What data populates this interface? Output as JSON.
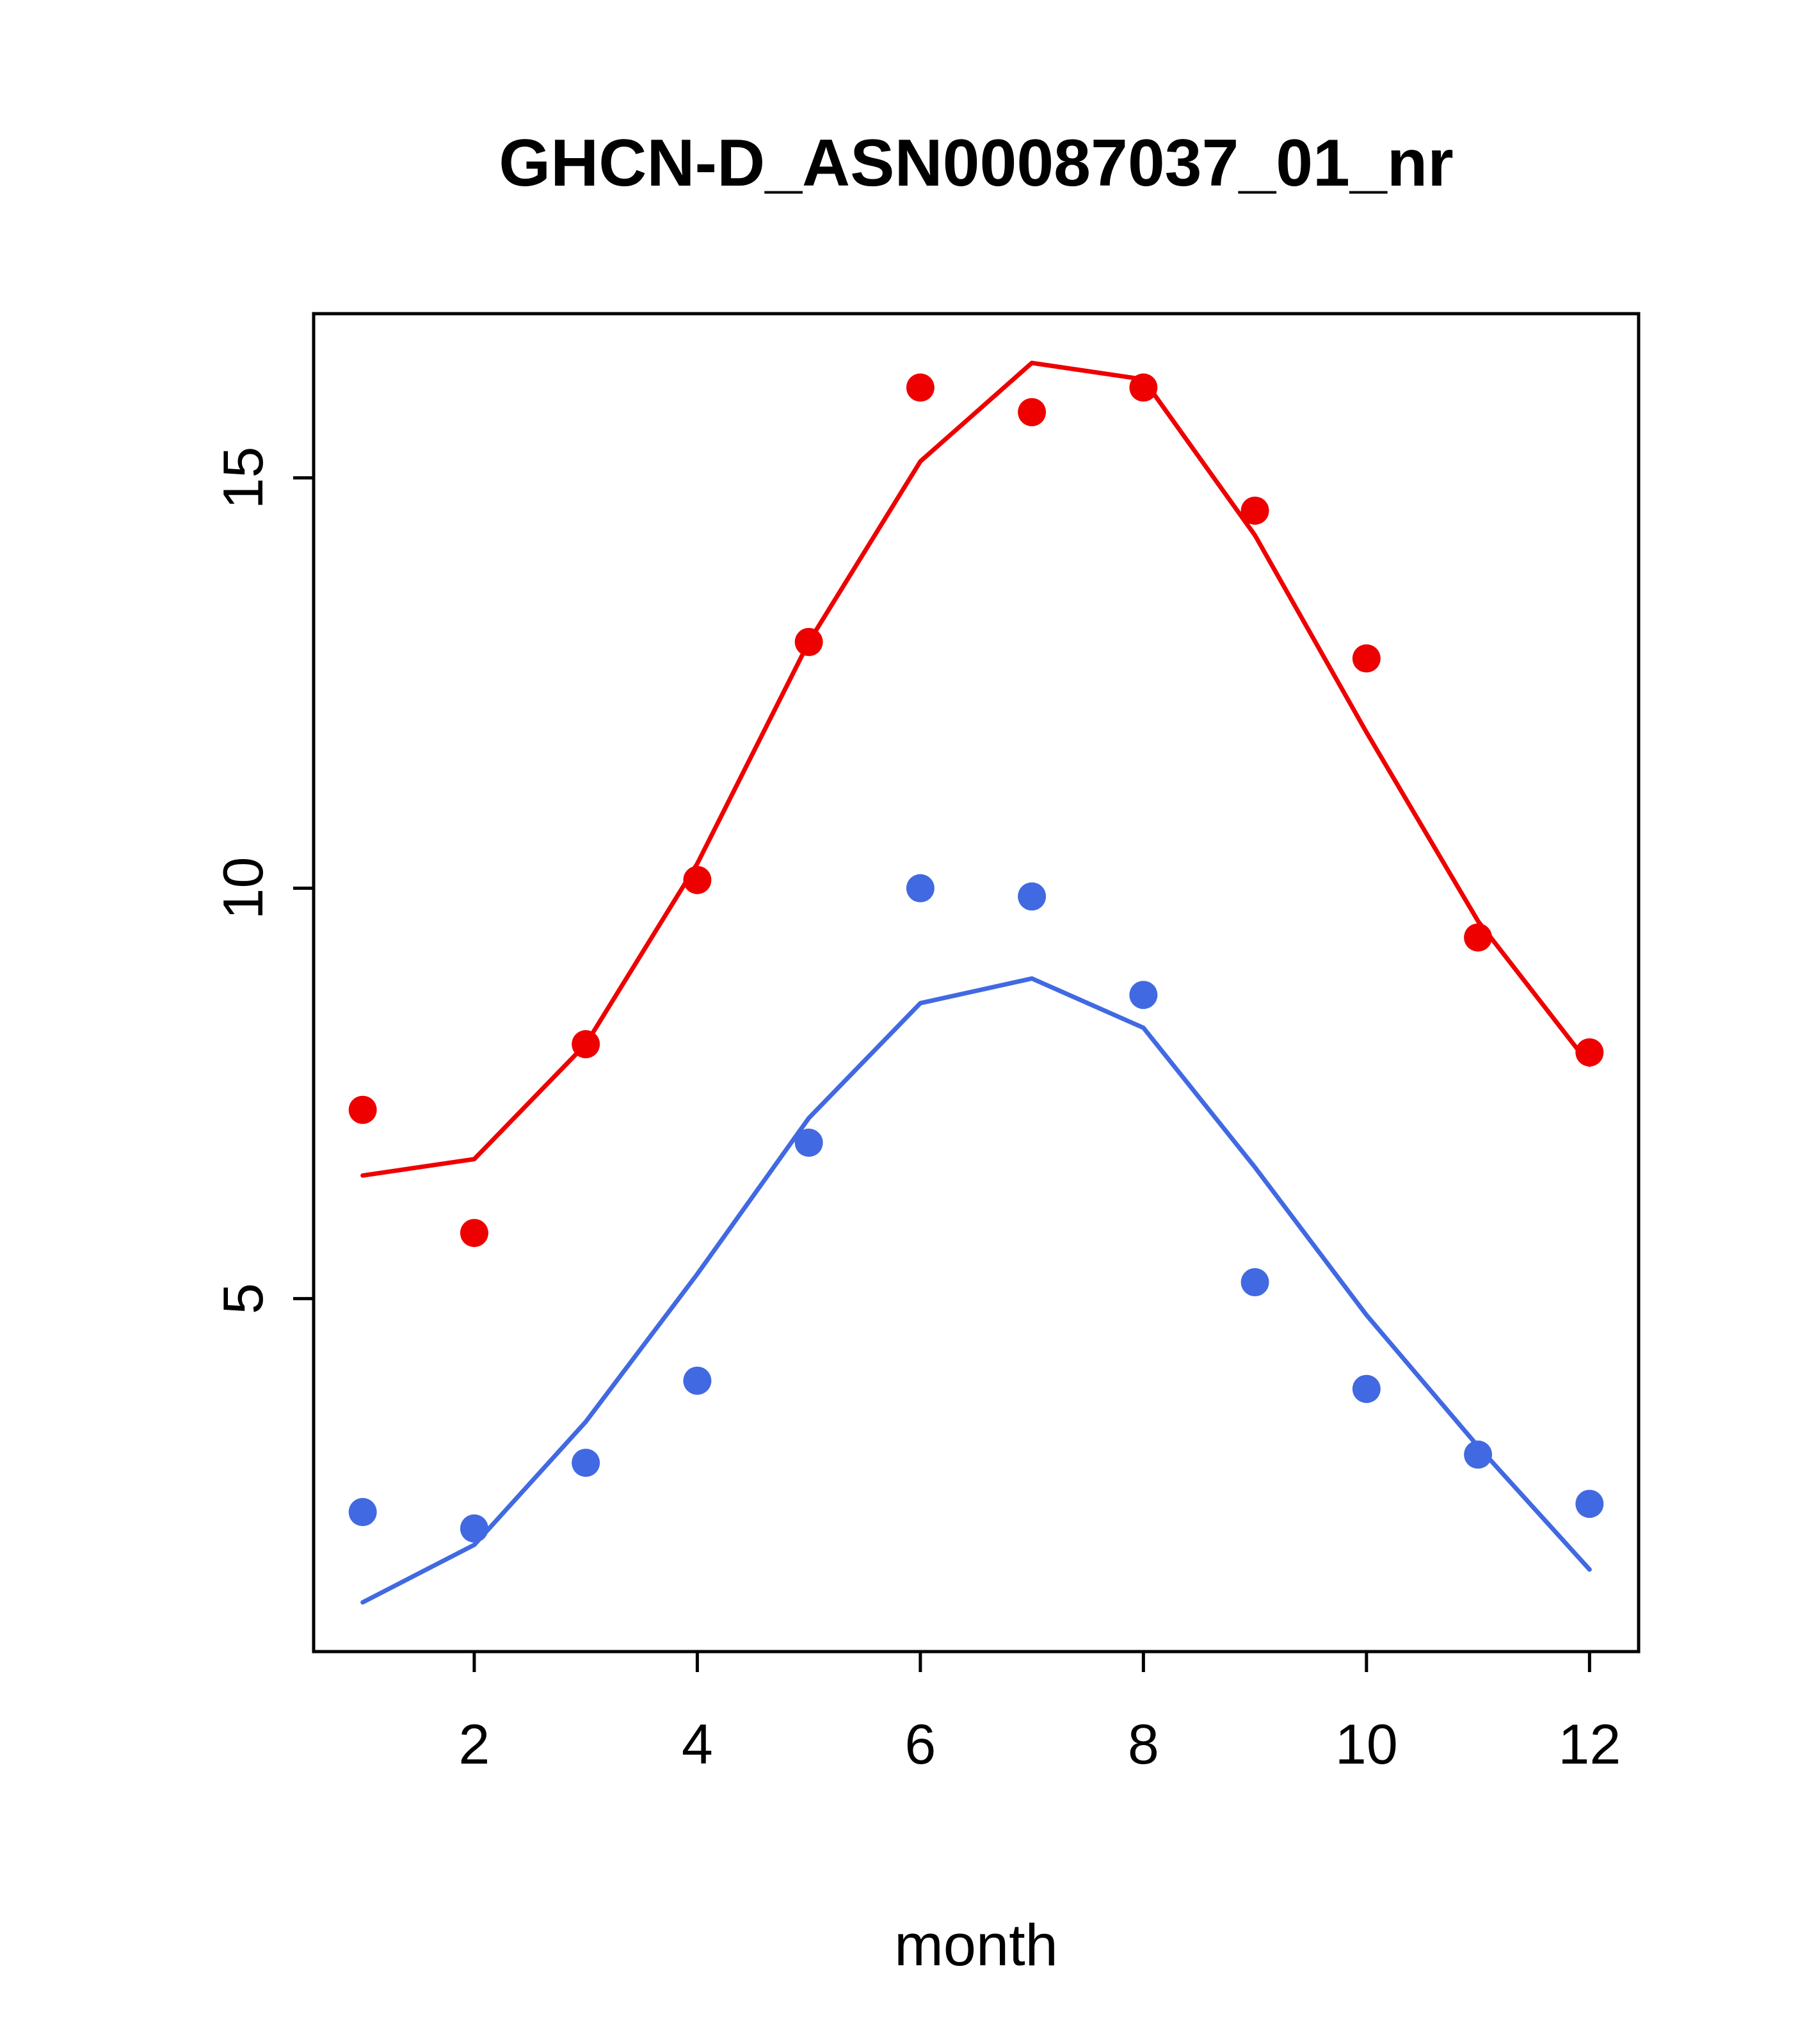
{
  "chart_data": {
    "type": "scatter",
    "title": "GHCN-D_ASN00087037_01_nr",
    "xlabel": "month",
    "ylabel": "",
    "x": [
      1,
      2,
      3,
      4,
      5,
      6,
      7,
      8,
      9,
      10,
      11,
      12
    ],
    "xlim": [
      0.56,
      12.44
    ],
    "ylim": [
      0.7,
      17.0
    ],
    "x_ticks": [
      2,
      4,
      6,
      8,
      10,
      12
    ],
    "y_ticks": [
      5,
      10,
      15
    ],
    "grid": false,
    "legend": "none",
    "series": [
      {
        "name": "red-fitted-line",
        "kind": "line",
        "color": "#ee0000",
        "values": [
          6.5,
          6.7,
          8.1,
          10.3,
          13.0,
          15.2,
          16.4,
          16.2,
          14.3,
          11.9,
          9.6,
          7.85
        ]
      },
      {
        "name": "red-observed-points",
        "kind": "points",
        "color": "#ee0000",
        "values": [
          7.3,
          5.8,
          8.1,
          10.1,
          13.0,
          16.1,
          15.8,
          16.1,
          14.6,
          12.8,
          9.4,
          8.0
        ]
      },
      {
        "name": "blue-fitted-line",
        "kind": "line",
        "color": "#4169e1",
        "values": [
          1.3,
          2.0,
          3.5,
          5.3,
          7.2,
          8.6,
          8.9,
          8.3,
          6.6,
          4.8,
          3.2,
          1.7
        ]
      },
      {
        "name": "blue-observed-points",
        "kind": "points",
        "color": "#4169e1",
        "values": [
          2.4,
          2.2,
          3.0,
          4.0,
          6.9,
          10.0,
          9.9,
          8.7,
          5.2,
          3.9,
          3.1,
          2.5
        ]
      }
    ]
  },
  "colors": {
    "axis": "#000000",
    "background": "#ffffff",
    "red_series": "#ee0000",
    "blue_series": "#4169e1"
  }
}
